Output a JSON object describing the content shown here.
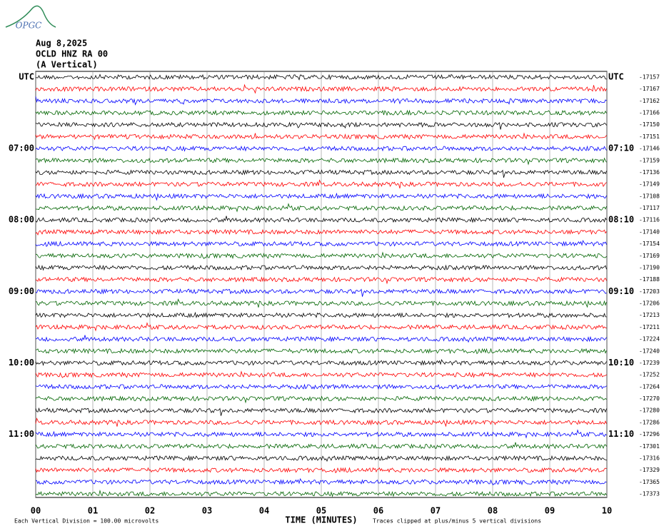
{
  "logo": "OPGC",
  "header": {
    "date": "Aug 8,2025",
    "station": "OCLD HNZ RA 00",
    "component": "(A Vertical)"
  },
  "rows": {
    "left": [
      "UTC",
      null,
      null,
      null,
      null,
      null,
      "07:00",
      null,
      null,
      null,
      null,
      null,
      "08:00",
      null,
      null,
      null,
      null,
      null,
      "09:00",
      null,
      null,
      null,
      null,
      null,
      "10:00",
      null,
      null,
      null,
      null,
      null,
      "11:00",
      null,
      null,
      null,
      null,
      null
    ],
    "right": [
      "UTC",
      null,
      null,
      null,
      null,
      null,
      "07:10",
      null,
      null,
      null,
      null,
      null,
      "08:10",
      null,
      null,
      null,
      null,
      null,
      "09:10",
      null,
      null,
      null,
      null,
      null,
      "10:10",
      null,
      null,
      null,
      null,
      null,
      "11:10",
      null,
      null,
      null,
      null,
      null
    ],
    "offsets": [
      -17157,
      -17167,
      -17162,
      -17166,
      -17150,
      -17151,
      -17146,
      -17159,
      -17136,
      -17149,
      -17108,
      -17117,
      -17116,
      -17140,
      -17154,
      -17169,
      -17190,
      -17188,
      -17203,
      -17206,
      -17213,
      -17211,
      -17224,
      -17240,
      -17239,
      -17252,
      -17264,
      -17270,
      -17280,
      -17286,
      -17296,
      -17301,
      -17316,
      -17329,
      -17365,
      -17373
    ]
  },
  "trace_colors": [
    "#000000",
    "#ff0000",
    "#0000ff",
    "#006400"
  ],
  "xlim": [
    0,
    10
  ],
  "xticks": [
    {
      "value": 0,
      "label": "00"
    },
    {
      "value": 1,
      "label": "01"
    },
    {
      "value": 2,
      "label": "02"
    },
    {
      "value": 3,
      "label": "03"
    },
    {
      "value": 4,
      "label": "04"
    },
    {
      "value": 5,
      "label": "05"
    },
    {
      "value": 6,
      "label": "06"
    },
    {
      "value": 7,
      "label": "07"
    },
    {
      "value": 8,
      "label": "08"
    },
    {
      "value": 9,
      "label": "09"
    },
    {
      "value": 10,
      "label": "10"
    }
  ],
  "xlabel": "TIME (MINUTES)",
  "footer": {
    "scale": "Each Vertical Division =  100.00 microvolts",
    "clip": "Traces clipped at plus/minus 5 vertical divisions"
  }
}
